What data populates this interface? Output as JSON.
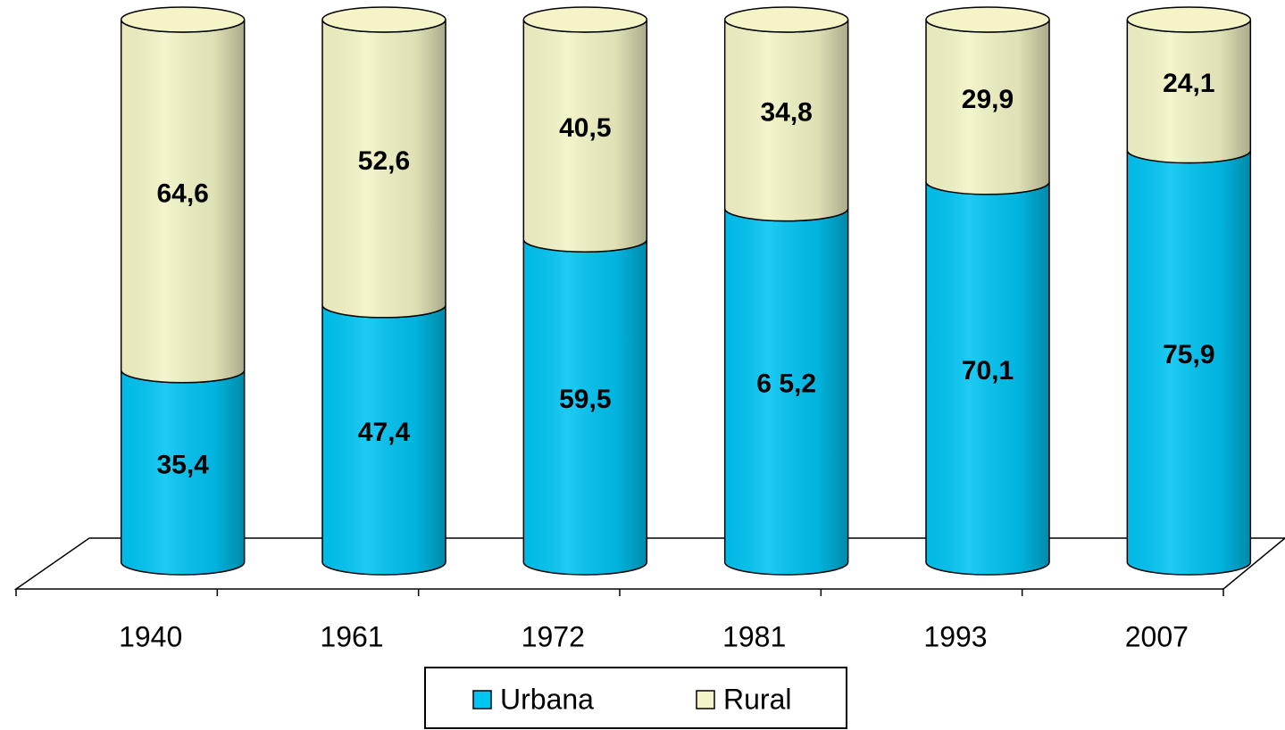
{
  "chart_data": {
    "type": "bar3d",
    "categories": [
      "1940",
      "1961",
      "1972",
      "1981",
      "1993",
      "2007"
    ],
    "series": [
      {
        "name": "Urbana",
        "color": "#00c4f2",
        "values": [
          35.4,
          47.4,
          59.5,
          65.2,
          70.1,
          75.9
        ],
        "value_labels": [
          "35,4",
          "47,4",
          "59,5",
          "6 5,2",
          "70,1",
          "75,9"
        ]
      },
      {
        "name": "Rural",
        "color": "#f4f4c6",
        "values": [
          64.6,
          52.6,
          40.5,
          34.8,
          29.9,
          24.1
        ],
        "value_labels": [
          "64,6",
          "52,6",
          "40,5",
          "34,8",
          "29,9",
          "24,1"
        ]
      }
    ],
    "stacked": true,
    "ylim": [
      0,
      100
    ]
  }
}
